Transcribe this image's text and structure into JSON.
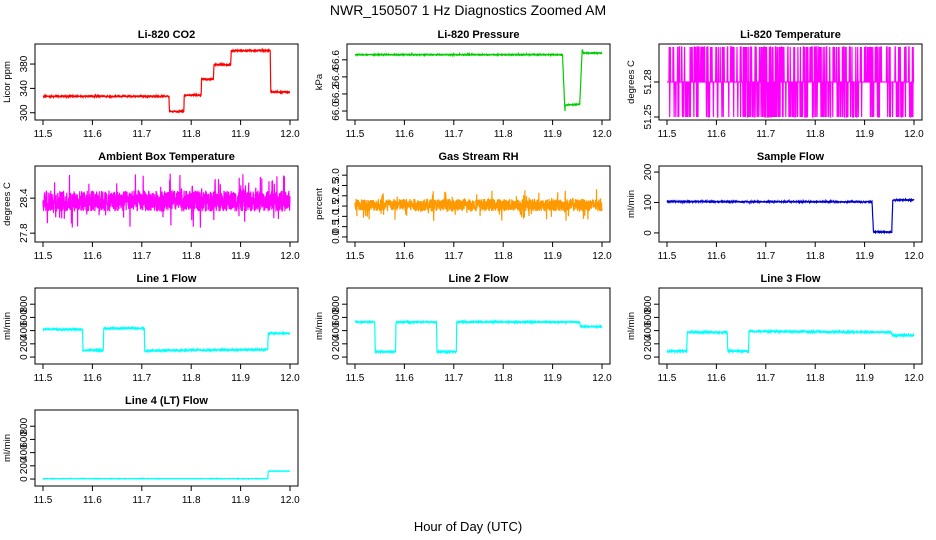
{
  "figure": {
    "title": "NWR_150507  1 Hz Diagnostics Zoomed AM",
    "xlabel": "Hour of Day (UTC)"
  },
  "chart_data": [
    {
      "type": "line",
      "title": "Li-820 CO2",
      "ylabel": "Licor ppm",
      "color": "#ff0000",
      "xlim": [
        11.5,
        12.0
      ],
      "ylim": [
        293,
        408
      ],
      "xticks": [
        "11.5",
        "11.6",
        "11.7",
        "11.8",
        "11.9",
        "12.0"
      ],
      "yticks": [
        300,
        340,
        380
      ],
      "ytick_labels": [
        "300",
        "340",
        "380"
      ],
      "noise": 0.8,
      "x": [
        11.5,
        11.755,
        11.756,
        11.785,
        11.786,
        11.82,
        11.821,
        11.845,
        11.846,
        11.88,
        11.881,
        11.96,
        11.961,
        12.0
      ],
      "y": [
        327,
        327,
        302,
        302,
        329,
        329,
        355,
        355,
        379,
        379,
        402,
        402,
        334,
        334
      ]
    },
    {
      "type": "line",
      "title": "Li-820 Pressure",
      "ylabel": "kPa",
      "color": "#00cc00",
      "xlim": [
        11.5,
        12.0
      ],
      "ylim": [
        65.93,
        66.75
      ],
      "xticks": [
        "11.5",
        "11.6",
        "11.7",
        "11.8",
        "11.9",
        "12.0"
      ],
      "yticks": [
        66.0,
        66.2,
        66.4,
        66.6
      ],
      "ytick_labels": [
        "66.0",
        "66.2",
        "66.4",
        "66.6"
      ],
      "noise": 0.004,
      "x": [
        11.5,
        11.918,
        11.92,
        11.925,
        11.926,
        11.955,
        11.957,
        11.96,
        11.962,
        12.0
      ],
      "y": [
        66.66,
        66.66,
        66.66,
        66.0,
        66.07,
        66.08,
        66.35,
        66.72,
        66.68,
        66.68
      ]
    },
    {
      "type": "line",
      "title": "Li-820 Temperature",
      "ylabel": "degrees C",
      "color": "#ff00ff",
      "xlim": [
        11.5,
        12.0
      ],
      "ylim": [
        51.25,
        51.31
      ],
      "xticks": [
        "11.5",
        "11.6",
        "11.7",
        "11.8",
        "11.9",
        "12.0"
      ],
      "yticks": [
        51.25,
        51.28
      ],
      "ytick_labels": [
        "51.25",
        "51.28"
      ],
      "noise": 0,
      "levels": [
        51.25,
        51.28,
        51.31
      ],
      "base": 51.28
    },
    {
      "type": "line",
      "title": "Ambient Box Temperature",
      "ylabel": "degrees C",
      "color": "#ff00ff",
      "xlim": [
        11.5,
        12.0
      ],
      "ylim": [
        27.7,
        28.9
      ],
      "xticks": [
        "11.5",
        "11.6",
        "11.7",
        "11.8",
        "11.9",
        "12.0"
      ],
      "yticks": [
        27.8,
        28.4
      ],
      "ytick_labels": [
        "27.8",
        "28.4"
      ],
      "noise": 0.18,
      "x": [
        11.5,
        12.0
      ],
      "y": [
        28.35,
        28.35
      ]
    },
    {
      "type": "line",
      "title": "Gas Stream RH",
      "ylabel": "percent",
      "color": "#ff9900",
      "xlim": [
        11.5,
        12.0
      ],
      "ylim": [
        -0.1,
        3.3
      ],
      "xticks": [
        "11.5",
        "11.6",
        "11.7",
        "11.8",
        "11.9",
        "12.0"
      ],
      "yticks": [
        0.0,
        0.5,
        1.0,
        1.5,
        2.0,
        2.5,
        3.0
      ],
      "ytick_labels": [
        "0.0",
        "0.5",
        "1.0",
        "1.5",
        "2.0",
        "2.5",
        "3.0"
      ],
      "noise": 0.3,
      "x": [
        11.5,
        12.0
      ],
      "y": [
        1.55,
        1.55
      ]
    },
    {
      "type": "line",
      "title": "Sample Flow",
      "ylabel": "ml/min",
      "color": "#0000cc",
      "xlim": [
        11.5,
        12.0
      ],
      "ylim": [
        -20,
        210
      ],
      "xticks": [
        "11.5",
        "11.6",
        "11.7",
        "11.8",
        "11.9",
        "12.0"
      ],
      "yticks": [
        0,
        100,
        200
      ],
      "ytick_labels": [
        "0",
        "100",
        "200"
      ],
      "noise": 1.5,
      "x": [
        11.5,
        11.915,
        11.918,
        11.955,
        11.957,
        12.0
      ],
      "y": [
        103,
        102,
        3,
        3,
        108,
        108
      ]
    },
    {
      "type": "line",
      "title": "Line 1 Flow",
      "ylabel": "ml/min",
      "color": "#00ffff",
      "xlim": [
        11.5,
        12.0
      ],
      "ylim": [
        -60,
        1000
      ],
      "xticks": [
        "11.5",
        "11.6",
        "11.7",
        "11.8",
        "11.9",
        "12.0"
      ],
      "yticks": [
        0,
        200,
        400,
        600,
        800
      ],
      "ytick_labels": [
        "0",
        "200",
        "400",
        "600",
        "800"
      ],
      "noise": 10,
      "x": [
        11.5,
        11.58,
        11.581,
        11.622,
        11.623,
        11.705,
        11.706,
        11.75,
        11.955,
        11.956,
        12.0
      ],
      "y": [
        420,
        420,
        100,
        100,
        435,
        435,
        90,
        100,
        115,
        360,
        360
      ]
    },
    {
      "type": "line",
      "title": "Line 2 Flow",
      "ylabel": "ml/min",
      "color": "#00ffff",
      "xlim": [
        11.5,
        12.0
      ],
      "ylim": [
        -60,
        1000
      ],
      "xticks": [
        "11.5",
        "11.6",
        "11.7",
        "11.8",
        "11.9",
        "12.0"
      ],
      "yticks": [
        0,
        200,
        400,
        600,
        800
      ],
      "ytick_labels": [
        "0",
        "200",
        "400",
        "600",
        "800"
      ],
      "noise": 8,
      "x": [
        11.5,
        11.54,
        11.541,
        11.582,
        11.583,
        11.665,
        11.666,
        11.705,
        11.706,
        11.955,
        11.956,
        12.0
      ],
      "y": [
        530,
        530,
        80,
        80,
        530,
        530,
        80,
        80,
        530,
        530,
        460,
        460
      ]
    },
    {
      "type": "line",
      "title": "Line 3 Flow",
      "ylabel": "ml/min",
      "color": "#00ffff",
      "xlim": [
        11.5,
        12.0
      ],
      "ylim": [
        -60,
        1000
      ],
      "xticks": [
        "11.5",
        "11.6",
        "11.7",
        "11.8",
        "11.9",
        "12.0"
      ],
      "yticks": [
        0,
        200,
        400,
        600,
        800
      ],
      "ytick_labels": [
        "0",
        "200",
        "400",
        "600",
        "800"
      ],
      "noise": 12,
      "x": [
        11.5,
        11.54,
        11.541,
        11.622,
        11.623,
        11.665,
        11.666,
        11.955,
        11.956,
        12.0
      ],
      "y": [
        90,
        90,
        375,
        375,
        90,
        90,
        390,
        375,
        330,
        330
      ]
    },
    {
      "type": "line",
      "title": "Line 4 (LT) Flow",
      "ylabel": "ml/min",
      "color": "#00ffff",
      "xlim": [
        11.5,
        12.0
      ],
      "ylim": [
        -60,
        1000
      ],
      "xticks": [
        "11.5",
        "11.6",
        "11.7",
        "11.8",
        "11.9",
        "12.0"
      ],
      "yticks": [
        0,
        200,
        400,
        600,
        800
      ],
      "ytick_labels": [
        "0",
        "200",
        "400",
        "600",
        "800"
      ],
      "noise": 2,
      "x": [
        11.5,
        11.955,
        11.956,
        12.0
      ],
      "y": [
        5,
        5,
        120,
        120
      ]
    }
  ]
}
